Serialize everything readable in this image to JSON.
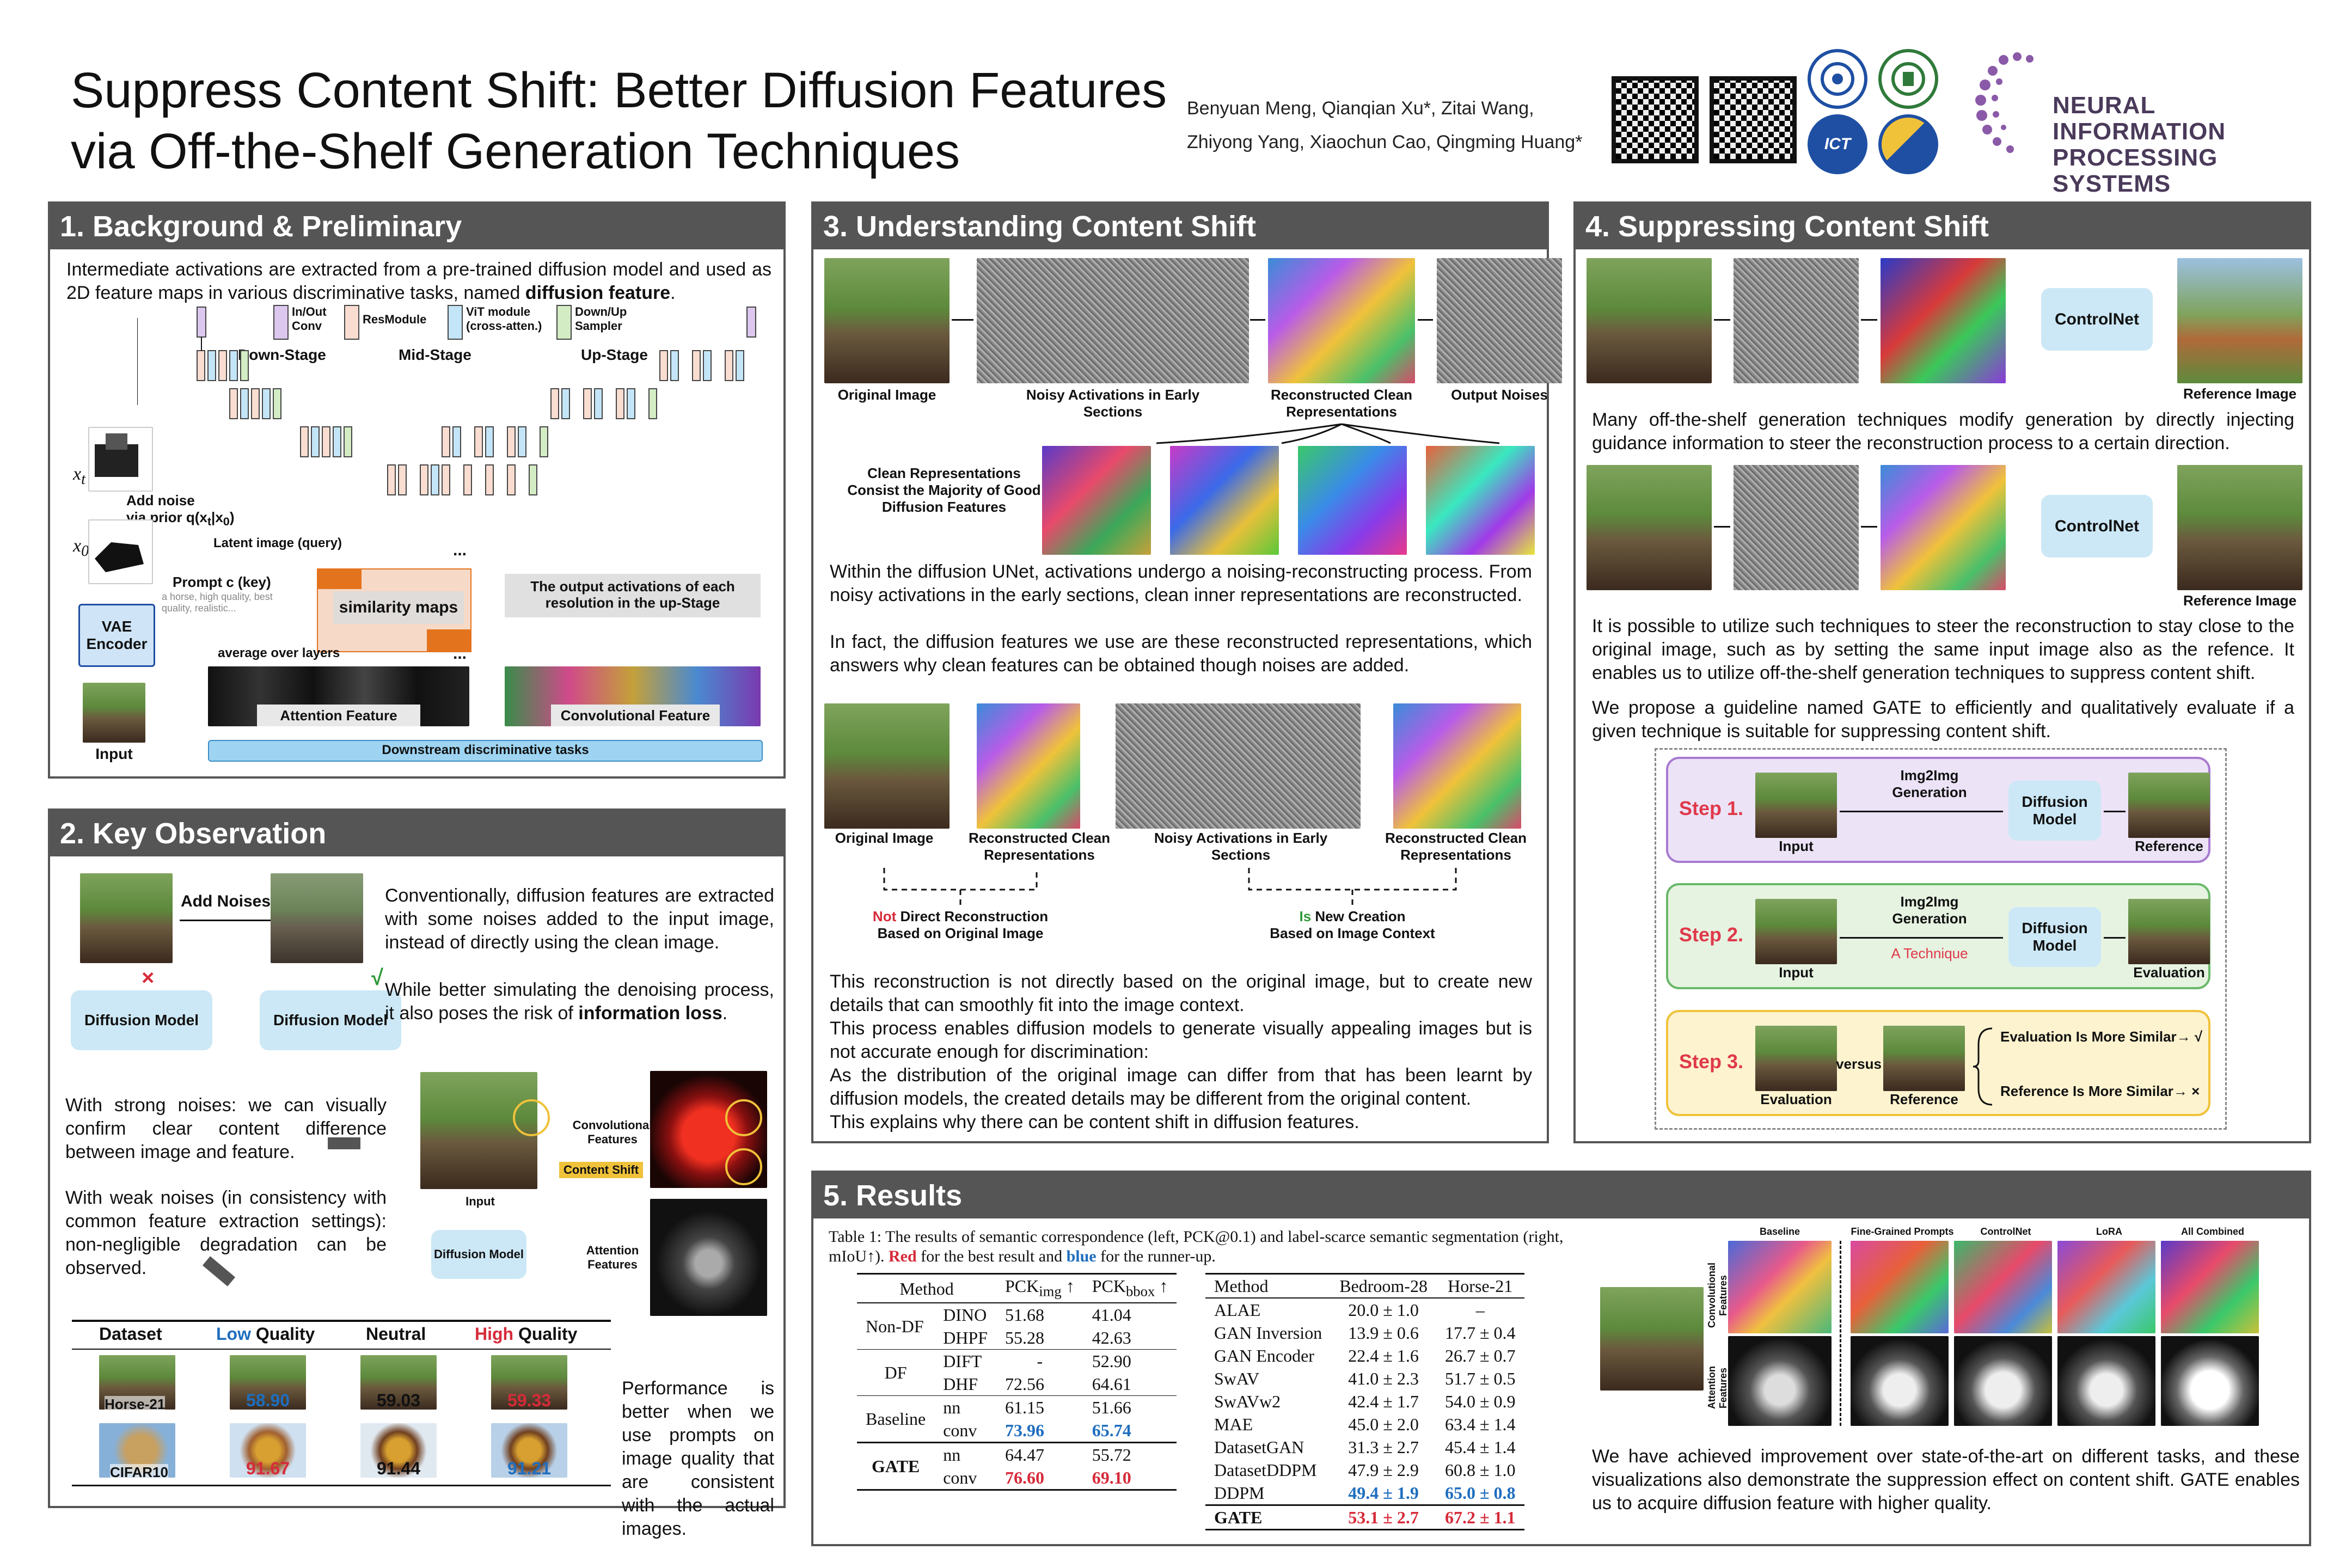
{
  "header": {
    "title_line1": "Suppress Content Shift: Better Diffusion Features",
    "title_line2": "via Off-the-Shelf Generation Techniques",
    "authors_line1": "Benyuan Meng, Qianqian Xu*, Zitai Wang,",
    "authors_line2": "Zhiyong Yang, Xiaochun Cao, Qingming Huang*",
    "logo_ict": "ICT",
    "neurips_line1": "NEURAL INFORMATION",
    "neurips_line2": "PROCESSING SYSTEMS"
  },
  "section1": {
    "heading": "1. Background & Preliminary",
    "intro_a": "Intermediate activations are extracted from a pre-trained diffusion model and used as 2D feature maps in various discriminative tasks, named ",
    "intro_bold": "diffusion feature",
    "intro_end": ".",
    "legend": [
      "In/Out Conv",
      "ResModule",
      "ViT module (cross-atten.)",
      "Down/Up Sampler"
    ],
    "stages": [
      "Down-Stage",
      "Mid-Stage",
      "Up-Stage"
    ],
    "xt": "x",
    "xt_sub": "t",
    "x0": "x",
    "x0_sub": "0",
    "add_noise_l1": "Add noise",
    "add_noise_l2": "via prior q(x",
    "add_noise_l2b": "t",
    "add_noise_l2c": "|x",
    "add_noise_l2d": "0",
    "add_noise_l2e": ")",
    "latent_query": "Latent image (query)",
    "prompt_key": "Prompt c (key)",
    "prompt_example": "a horse, high quality, best quality, realistic...",
    "vae": "VAE Encoder",
    "input": "Input",
    "similarity_maps": "similarity maps",
    "ellipsis": "...",
    "output_activations": "The output activations of each resolution in the up-Stage",
    "avg_over_layers": "average over layers",
    "attention_feature": "Attention Feature",
    "conv_feature": "Convolutional Feature",
    "downstream": "Downstream discriminative tasks"
  },
  "section2": {
    "heading": "2. Key Observation",
    "add_noises": "Add Noises",
    "cross": "×",
    "check": "√",
    "diffusion_model": "Diffusion Model",
    "para1": "Conventionally, diffusion features are extracted with some noises added to the input image, instead of directly using the clean image.",
    "para2_a": "While better simulating the denoising process, it also poses the risk of ",
    "para2_bold": "information loss",
    "para2_end": ".",
    "strong_noise": "With strong noises: we can visually confirm clear content difference between image and feature.",
    "weak_noise": "With weak noises (in consistency with common feature extraction settings): non-negligible degradation can be observed.",
    "conv_features": "Convolutional Features",
    "content_shift": "Content Shift",
    "input_label": "Input",
    "diffusion_model2": "Diffusion Model",
    "attention_features": "Attention Features",
    "table_headers": [
      "Dataset",
      "Low",
      "Quality",
      "Neutral",
      "High",
      "Quality"
    ],
    "rows": [
      {
        "dataset": "Horse-21",
        "low": "58.90",
        "neutral": "59.03",
        "high": "59.33"
      },
      {
        "dataset": "CIFAR10",
        "low": "91.67",
        "neutral": "91.44",
        "high": "91.21"
      }
    ],
    "performance": "Performance is better when we use prompts on image quality that are consistent with the actual images."
  },
  "section3": {
    "heading": "3. Understanding Content Shift",
    "labels_top": [
      "Original Image",
      "Noisy Activations in Early Sections",
      "Reconstructed Clean Representations",
      "Output Noises"
    ],
    "clean_repr_note": "Clean Representations Consist the Majority of Good Diffusion Features",
    "para1": "Within the diffusion UNet, activations undergo a noising-reconstructing process. From noisy activations in the early sections, clean inner representations are reconstructed.",
    "para2": "In fact, the diffusion features we use are these reconstructed representations, which answers why clean features can be obtained though noises are added.",
    "labels_mid": [
      "Original Image",
      "Reconstructed Clean Representations",
      "Noisy Activations in Early Sections",
      "Reconstructed Clean Representations"
    ],
    "not_word": "Not",
    "not_rest": " Direct Reconstruction",
    "not_line2": "Based on Original Image",
    "is_word": "Is",
    "is_rest": " New Creation",
    "is_line2": "Based on Image Context",
    "para3": "This reconstruction is not directly based on the original image, but to create new details that can smoothly fit into the image context.",
    "para4": "This process enables diffusion models to generate visually appealing images but is not accurate enough for discrimination:",
    "para5": "As the distribution of the original image can differ from that has been learnt by diffusion models, the created details may be different from the original content.",
    "para6": "This explains why there can be content shift in diffusion features."
  },
  "section4": {
    "heading": "4. Suppressing Content Shift",
    "controlnet": "ControlNet",
    "reference_image": "Reference Image",
    "para1": "Many off-the-shelf generation techniques modify generation by directly injecting guidance information to steer the reconstruction process to a certain direction.",
    "para2": "It is possible to utilize such techniques to steer the reconstruction to stay close to the original image, such as by setting the same input image also as the refence. It enables us to utilize off-the-shelf generation techniques to suppress content shift.",
    "para3": "We propose a guideline named GATE to efficiently and qualitatively evaluate if a given technique is suitable for suppressing content shift.",
    "step1": "Step 1.",
    "step2": "Step 2.",
    "step3": "Step 3.",
    "img2img": "Img2Img Generation",
    "diffusion_model": "Diffusion Model",
    "input": "Input",
    "reference": "Reference",
    "a_technique": "A Technique",
    "evaluation": "Evaluation",
    "versus": "versus",
    "eval_more": "Evaluation Is More Similar→ √",
    "ref_more": "Reference  Is More Similar→ ×"
  },
  "section5": {
    "heading": "5. Results",
    "caption_a": "Table 1: The results of semantic correspondence (left, PCK@0.1) and label-scarce semantic segmentation (right, mIoU↑). ",
    "caption_red": "Red",
    "caption_mid": " for the best result and ",
    "caption_blue": "blue",
    "caption_end": " for the runner-up.",
    "left_headers": [
      "Method",
      "",
      "PCK",
      "img",
      " ↑",
      "PCK",
      "bbox",
      " ↑"
    ],
    "left_rows": [
      {
        "group": "Non-DF",
        "m": "DINO",
        "a": "51.68",
        "b": "41.04"
      },
      {
        "group": "",
        "m": "DHPF",
        "a": "55.28",
        "b": "42.63"
      },
      {
        "group": "DF",
        "m": "DIFT",
        "a": "-",
        "b": "52.90"
      },
      {
        "group": "",
        "m": "DHF",
        "a": "72.56",
        "b": "64.61"
      },
      {
        "group": "Baseline",
        "m": "nn",
        "a": "61.15",
        "b": "51.66"
      },
      {
        "group": "",
        "m": "conv",
        "a": "73.96",
        "b": "65.74"
      },
      {
        "group": "GATE",
        "m": "nn",
        "a": "64.47",
        "b": "55.72"
      },
      {
        "group": "",
        "m": "conv",
        "a": "76.60",
        "b": "69.10"
      }
    ],
    "right_headers": [
      "Method",
      "Bedroom-28",
      "Horse-21"
    ],
    "right_rows": [
      {
        "m": "ALAE",
        "a": "20.0 ± 1.0",
        "b": "–"
      },
      {
        "m": "GAN Inversion",
        "a": "13.9 ± 0.6",
        "b": "17.7 ± 0.4"
      },
      {
        "m": "GAN Encoder",
        "a": "22.4 ± 1.6",
        "b": "26.7 ± 0.7"
      },
      {
        "m": "SwAV",
        "a": "41.0 ± 2.3",
        "b": "51.7 ± 0.5"
      },
      {
        "m": "SwAVw2",
        "a": "42.4 ± 1.7",
        "b": "54.0 ± 0.9"
      },
      {
        "m": "MAE",
        "a": "45.0 ± 2.0",
        "b": "63.4 ± 1.4"
      },
      {
        "m": "DatasetGAN",
        "a": "31.3 ± 2.7",
        "b": "45.4 ± 1.4"
      },
      {
        "m": "DatasetDDPM",
        "a": "47.9 ± 2.9",
        "b": "60.8 ± 1.0"
      },
      {
        "m": "DDPM",
        "a": "49.4 ± 1.9",
        "b": "65.0 ± 0.8"
      },
      {
        "m": "GATE",
        "a": "53.1 ± 2.7",
        "b": "67.2 ± 1.1"
      }
    ],
    "viz_cols": [
      "Baseline",
      "Fine-Grained Prompts",
      "ControlNet",
      "LoRA",
      "All Combined"
    ],
    "viz_rows": [
      "Convolutional Features",
      "Attention Features"
    ],
    "conclusion": "We have achieved improvement over state-of-the-art on different tasks, and these visualizations also demonstrate the suppression effect on content shift. GATE enables us to acquire diffusion feature with higher quality."
  },
  "colors": {
    "panel_header": "#555555",
    "red": "#d62b3a",
    "blue": "#1f6ebf",
    "light_blue_box": "#cce8f6",
    "step1_bg": "#ece3f7",
    "step2_bg": "#e6f3e1",
    "step3_bg": "#fdf3cf"
  }
}
